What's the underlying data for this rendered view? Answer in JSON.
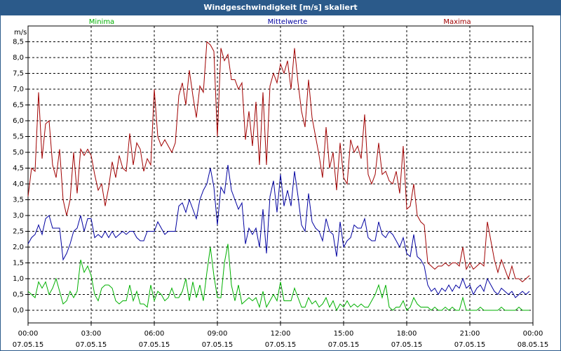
{
  "chart_data": {
    "type": "line",
    "title": "Windgeschwindigkeit [m/s] skaliert",
    "y_label": "m/s",
    "x": [
      0,
      10,
      20,
      30,
      40,
      50,
      60,
      70,
      80,
      90,
      100,
      110,
      120,
      130,
      140,
      150,
      160,
      170,
      180,
      190,
      200,
      210,
      220,
      230,
      240,
      250,
      260,
      270,
      280,
      290,
      300,
      310,
      320,
      330,
      340,
      350,
      360,
      370,
      380,
      390,
      400,
      410,
      420,
      430,
      440,
      450,
      460,
      470,
      480,
      490,
      500,
      510,
      520,
      530,
      540,
      550,
      560,
      570,
      580,
      590,
      600,
      610,
      620,
      630,
      640,
      650,
      660,
      670,
      680,
      690,
      700,
      710,
      720,
      730,
      740,
      750,
      760,
      770,
      780,
      790,
      800,
      810,
      820,
      830,
      840,
      850,
      860,
      870,
      880,
      890,
      900,
      910,
      920,
      930,
      940,
      950,
      960,
      970,
      980,
      990,
      1000,
      1010,
      1020,
      1030,
      1040,
      1050,
      1060,
      1070,
      1080,
      1090,
      1100,
      1110,
      1120,
      1130,
      1140,
      1150,
      1160,
      1170,
      1180,
      1190,
      1200,
      1210,
      1220,
      1230,
      1240,
      1250,
      1260,
      1270,
      1280,
      1290,
      1300,
      1310,
      1320,
      1330,
      1340,
      1350,
      1360,
      1370,
      1380,
      1390,
      1400,
      1410,
      1420,
      1430
    ],
    "series": [
      {
        "name": "Minima",
        "color": "#00b000",
        "values": [
          0.6,
          0.5,
          0.4,
          0.9,
          0.7,
          0.9,
          0.5,
          0.7,
          1.0,
          0.6,
          0.2,
          0.3,
          0.6,
          0.4,
          0.6,
          1.6,
          1.2,
          1.4,
          1.1,
          0.5,
          0.3,
          0.7,
          0.8,
          0.8,
          0.7,
          0.3,
          0.2,
          0.3,
          0.3,
          0.8,
          0.3,
          0.6,
          0.2,
          0.2,
          0.1,
          0.8,
          0.3,
          0.6,
          0.5,
          0.3,
          0.4,
          0.7,
          0.4,
          0.4,
          0.6,
          1.0,
          0.3,
          0.9,
          0.4,
          0.8,
          0.3,
          1.2,
          2.0,
          1.1,
          0.4,
          0.4,
          1.5,
          2.1,
          0.8,
          0.3,
          0.8,
          0.2,
          0.3,
          0.4,
          0.3,
          0.4,
          0.1,
          0.6,
          0.1,
          0.3,
          0.5,
          0.3,
          0.9,
          0.3,
          0.3,
          0.3,
          0.7,
          0.4,
          0.1,
          0.1,
          0.4,
          0.2,
          0.3,
          0.1,
          0.2,
          0.4,
          0.1,
          0.3,
          0.0,
          0.2,
          0.1,
          0.3,
          0.1,
          0.2,
          0.1,
          0.2,
          0.1,
          0.1,
          0.3,
          0.5,
          0.8,
          0.4,
          0.8,
          0.1,
          0.0,
          0.1,
          0.1,
          0.3,
          0.0,
          0.1,
          0.4,
          0.2,
          0.1,
          0.1,
          0.1,
          0.0,
          0.1,
          0.0,
          0.0,
          0.1,
          0.0,
          0.1,
          0.0,
          0.0,
          0.4,
          0.0,
          0.0,
          0.0,
          0.0,
          0.1,
          0.0,
          0.0,
          0.0,
          0.0,
          0.0,
          0.1,
          0.0,
          0.0,
          0.0,
          0.0,
          0.1,
          0.0,
          0.0,
          0.0
        ]
      },
      {
        "name": "Mittelwerte",
        "color": "#0000a0",
        "values": [
          2.1,
          2.3,
          2.4,
          2.7,
          2.4,
          2.9,
          3.0,
          2.6,
          2.6,
          2.6,
          1.6,
          1.8,
          2.1,
          2.5,
          2.6,
          3.0,
          2.5,
          2.9,
          2.9,
          2.3,
          2.4,
          2.3,
          2.5,
          2.3,
          2.5,
          2.3,
          2.4,
          2.5,
          2.4,
          2.5,
          2.5,
          2.3,
          2.2,
          2.2,
          2.5,
          2.5,
          2.5,
          2.8,
          2.6,
          2.4,
          2.5,
          2.5,
          2.5,
          3.3,
          3.4,
          3.1,
          3.5,
          3.2,
          2.9,
          3.5,
          3.8,
          4.0,
          4.5,
          3.9,
          2.7,
          3.9,
          3.7,
          4.6,
          3.8,
          3.5,
          3.2,
          3.4,
          2.1,
          2.6,
          2.4,
          2.6,
          2.0,
          3.2,
          1.8,
          3.6,
          4.1,
          3.1,
          4.3,
          3.3,
          3.8,
          3.3,
          4.4,
          3.6,
          2.7,
          2.5,
          3.7,
          2.8,
          2.6,
          2.5,
          2.2,
          2.9,
          2.5,
          2.4,
          1.7,
          2.8,
          2.0,
          2.2,
          2.3,
          2.7,
          2.6,
          2.6,
          2.9,
          2.3,
          2.2,
          2.2,
          2.8,
          2.4,
          2.3,
          2.5,
          2.4,
          2.2,
          2.0,
          2.3,
          1.8,
          1.7,
          2.4,
          1.7,
          1.6,
          1.4,
          0.8,
          0.6,
          0.7,
          0.5,
          0.7,
          0.6,
          0.8,
          0.6,
          0.8,
          0.7,
          1.0,
          0.7,
          0.8,
          0.5,
          0.7,
          0.8,
          0.6,
          1.0,
          0.8,
          0.6,
          0.5,
          0.7,
          0.6,
          0.5,
          0.6,
          0.4,
          0.5,
          0.6,
          0.5,
          0.6
        ]
      },
      {
        "name": "Maxima",
        "color": "#a00000",
        "values": [
          3.6,
          4.5,
          4.4,
          6.9,
          4.8,
          5.9,
          6.0,
          4.6,
          4.2,
          5.1,
          3.5,
          3.0,
          3.5,
          5.0,
          3.7,
          5.1,
          4.9,
          5.1,
          4.9,
          4.3,
          3.8,
          4.0,
          3.3,
          3.9,
          4.7,
          4.2,
          4.9,
          4.5,
          4.4,
          5.6,
          4.6,
          5.3,
          5.1,
          4.4,
          4.8,
          4.6,
          7.0,
          5.5,
          5.2,
          5.4,
          5.2,
          5.0,
          5.3,
          6.8,
          7.2,
          6.5,
          7.6,
          6.8,
          6.1,
          7.1,
          6.9,
          8.5,
          8.4,
          8.2,
          5.5,
          8.3,
          7.9,
          8.1,
          7.3,
          7.3,
          7.0,
          7.2,
          5.4,
          6.3,
          5.2,
          6.6,
          4.6,
          6.9,
          4.6,
          7.1,
          7.5,
          7.2,
          7.8,
          7.5,
          7.9,
          7.0,
          8.3,
          7.2,
          6.3,
          5.8,
          7.3,
          6.1,
          5.5,
          4.9,
          4.2,
          5.8,
          4.5,
          5.0,
          3.8,
          5.3,
          4.2,
          4.0,
          5.4,
          5.0,
          5.2,
          4.8,
          6.2,
          4.3,
          4.0,
          4.3,
          5.3,
          4.3,
          4.4,
          4.1,
          4.0,
          4.4,
          3.7,
          5.2,
          3.2,
          3.3,
          4.0,
          3.0,
          2.8,
          2.7,
          1.5,
          1.4,
          1.3,
          1.4,
          1.4,
          1.5,
          1.4,
          1.5,
          1.5,
          1.4,
          2.0,
          1.3,
          1.5,
          1.3,
          1.4,
          1.5,
          1.4,
          2.8,
          2.2,
          1.6,
          1.2,
          1.6,
          1.3,
          1.0,
          1.4,
          1.0,
          1.0,
          0.9,
          1.0,
          1.1
        ]
      }
    ],
    "xlim": [
      0,
      1440
    ],
    "xticks": [
      {
        "value": 0,
        "label": "00:00\n07.05.15"
      },
      {
        "value": 180,
        "label": "03:00\n07.05.15"
      },
      {
        "value": 360,
        "label": "06:00\n07.05.15"
      },
      {
        "value": 540,
        "label": "09:00\n07.05.15"
      },
      {
        "value": 720,
        "label": "12:00\n07.05.15"
      },
      {
        "value": 900,
        "label": "15:00\n07.05.15"
      },
      {
        "value": 1080,
        "label": "18:00\n07.05.15"
      },
      {
        "value": 1260,
        "label": "21:00\n07.05.15"
      },
      {
        "value": 1440,
        "label": "00:00\n08.05.15"
      }
    ],
    "ylim": [
      -0.4,
      9.0
    ],
    "yticks": [
      {
        "value": 0,
        "label": "0,0"
      },
      {
        "value": 0.5,
        "label": "0,5"
      },
      {
        "value": 1,
        "label": "1,0"
      },
      {
        "value": 1.5,
        "label": "1,5"
      },
      {
        "value": 2,
        "label": "2,0"
      },
      {
        "value": 2.5,
        "label": "2,5"
      },
      {
        "value": 3,
        "label": "3,0"
      },
      {
        "value": 3.5,
        "label": "3,5"
      },
      {
        "value": 4,
        "label": "4,0"
      },
      {
        "value": 4.5,
        "label": "4,5"
      },
      {
        "value": 5,
        "label": "5,0"
      },
      {
        "value": 5.5,
        "label": "5,5"
      },
      {
        "value": 6,
        "label": "6,0"
      },
      {
        "value": 6.5,
        "label": "6,5"
      },
      {
        "value": 7,
        "label": "7,0"
      },
      {
        "value": 7.5,
        "label": "7,5"
      },
      {
        "value": 8,
        "label": "8,0"
      },
      {
        "value": 8.5,
        "label": "8,5"
      }
    ],
    "grid": true
  }
}
